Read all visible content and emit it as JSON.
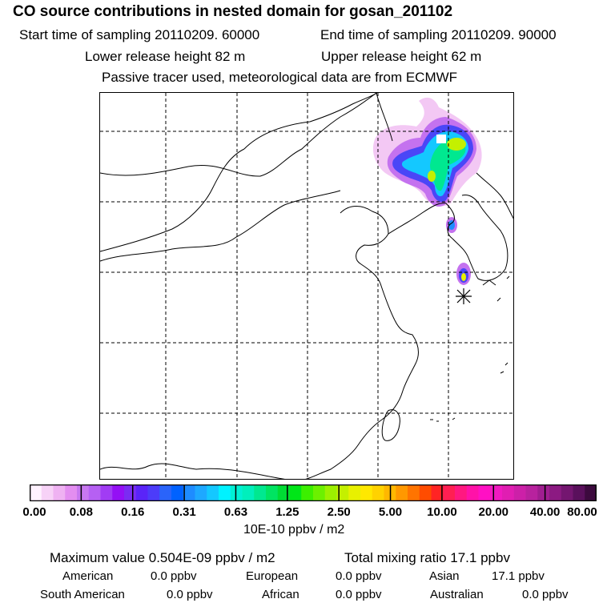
{
  "header": {
    "title": "CO  source contributions in nested domain for gosan_201102",
    "start_label": "Start time of sampling 20110209. 60000",
    "end_label": "End time of sampling 20110209. 90000",
    "lower_label": "Lower release height   82 m",
    "upper_label": "Upper release height   62 m",
    "info": "Passive tracer used, meteorological data are from ECMWF"
  },
  "map": {
    "receptor_icon": "asterisk-marker-icon",
    "graticule": "dashed lat-lon grid lines"
  },
  "colorbar": {
    "tick_labels": [
      "0.00",
      "0.08",
      "0.16",
      "0.31",
      "0.63",
      "1.25",
      "2.50",
      "5.00",
      "10.00",
      "20.00",
      "40.00",
      "80.00"
    ],
    "colors": [
      "#fff2ff",
      "#f7d2f7",
      "#efb2f2",
      "#e38ef0",
      "#c878f0",
      "#b660f3",
      "#a13cf4",
      "#9410f5",
      "#7a2cf2",
      "#5a24f8",
      "#4c3cf9",
      "#2a64fa",
      "#0062ff",
      "#1e8cff",
      "#1ea8ff",
      "#14c8ff",
      "#00f2ff",
      "#00f0d4",
      "#00efbc",
      "#00e890",
      "#00e462",
      "#00dc34",
      "#00e618",
      "#3cef00",
      "#6cf000",
      "#9cf000",
      "#c4f000",
      "#e8f000",
      "#ffe800",
      "#ffd200",
      "#ffb800",
      "#ff9800",
      "#ff7400",
      "#ff4c00",
      "#ff2424",
      "#ff1f52",
      "#ff1880",
      "#ff12a8",
      "#ff10c4",
      "#f01ac0",
      "#e01eb2",
      "#cc20a8",
      "#b8229e",
      "#a01e90",
      "#8c1a82",
      "#741670",
      "#5a105c",
      "#3c0a3e"
    ],
    "units": "10E-10 ppbv / m2"
  },
  "footer": {
    "max_value": "Maximum value  0.504E-09 ppbv / m2",
    "total_mixing": "Total mixing ratio       17.1 ppbv",
    "regions": [
      {
        "name": "American",
        "value": "0.0 ppbv"
      },
      {
        "name": "European",
        "value": "0.0 ppbv"
      },
      {
        "name": "Asian",
        "value": "17.1 ppbv"
      },
      {
        "name": "South American",
        "value": "0.0 ppbv"
      },
      {
        "name": "African",
        "value": "0.0 ppbv"
      },
      {
        "name": "Australian",
        "value": "0.0 ppbv"
      }
    ]
  }
}
